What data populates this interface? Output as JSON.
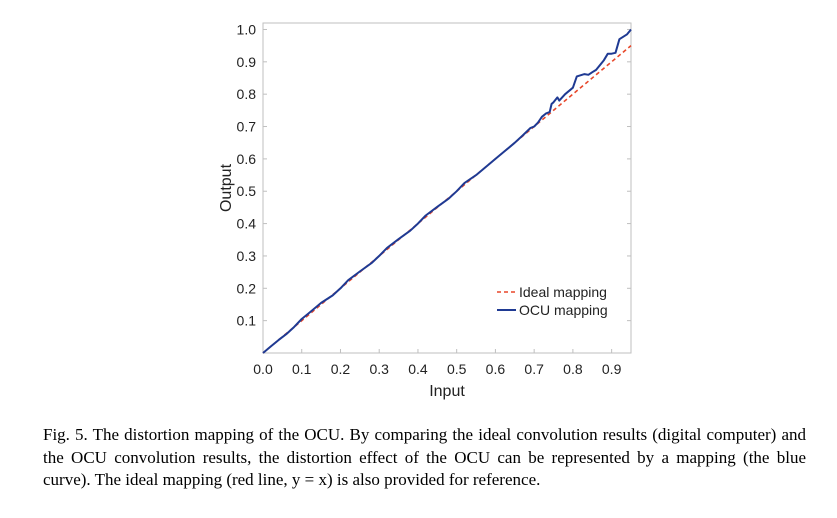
{
  "chart_data": {
    "type": "line",
    "xlabel": "Input",
    "ylabel": "Output",
    "xlim": [
      0,
      0.95
    ],
    "ylim": [
      0,
      1.02
    ],
    "x_ticks": [
      "0.0",
      "0.1",
      "0.2",
      "0.3",
      "0.4",
      "0.5",
      "0.6",
      "0.7",
      "0.8",
      "0.9"
    ],
    "y_ticks": [
      "0.1",
      "0.2",
      "0.3",
      "0.4",
      "0.5",
      "0.6",
      "0.7",
      "0.8",
      "0.9",
      "1.0"
    ],
    "grid": false,
    "legend_position": "bottom-right",
    "series": [
      {
        "name": "Ideal mapping",
        "style": "dashed",
        "color": "#e8472a",
        "x": [
          0,
          0.95
        ],
        "y": [
          0,
          0.95
        ]
      },
      {
        "name": "OCU mapping",
        "style": "solid",
        "color": "#1f3a93",
        "x": [
          0,
          0.02,
          0.04,
          0.06,
          0.08,
          0.1,
          0.12,
          0.15,
          0.18,
          0.2,
          0.22,
          0.25,
          0.28,
          0.3,
          0.32,
          0.35,
          0.38,
          0.4,
          0.42,
          0.45,
          0.48,
          0.5,
          0.52,
          0.55,
          0.58,
          0.6,
          0.62,
          0.65,
          0.67,
          0.69,
          0.7,
          0.71,
          0.72,
          0.73,
          0.74,
          0.745,
          0.75,
          0.76,
          0.765,
          0.78,
          0.8,
          0.81,
          0.83,
          0.84,
          0.85,
          0.86,
          0.88,
          0.89,
          0.9,
          0.91,
          0.92,
          0.94,
          0.95
        ],
        "y": [
          0,
          0.02,
          0.04,
          0.058,
          0.08,
          0.105,
          0.125,
          0.155,
          0.178,
          0.2,
          0.225,
          0.252,
          0.278,
          0.3,
          0.325,
          0.352,
          0.378,
          0.4,
          0.425,
          0.452,
          0.478,
          0.5,
          0.525,
          0.55,
          0.58,
          0.6,
          0.62,
          0.65,
          0.672,
          0.695,
          0.7,
          0.712,
          0.73,
          0.74,
          0.745,
          0.77,
          0.775,
          0.79,
          0.78,
          0.8,
          0.82,
          0.855,
          0.862,
          0.86,
          0.868,
          0.875,
          0.905,
          0.925,
          0.925,
          0.928,
          0.97,
          0.985,
          1.0
        ]
      }
    ]
  },
  "caption": {
    "text": "Fig. 5. The distortion mapping of the OCU. By comparing the ideal convolution results (digital computer) and the OCU convolution results, the distortion effect of the OCU can be represented by a mapping (the blue curve). The ideal mapping (red line, y = x) is also provided for reference."
  }
}
